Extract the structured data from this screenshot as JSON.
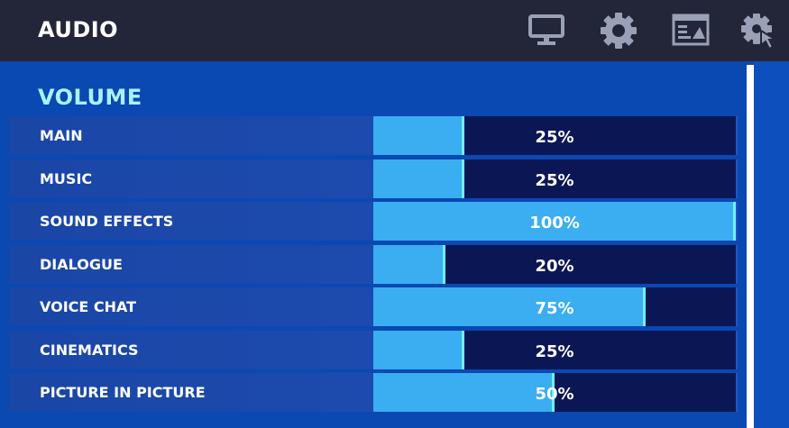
{
  "header": {
    "title": "AUDIO",
    "icons": [
      "monitor-icon",
      "gear-icon",
      "layout-icon",
      "touch-gear-icon"
    ]
  },
  "section": {
    "title": "VOLUME"
  },
  "sliders": [
    {
      "label": "MAIN",
      "value": 25,
      "display": "25%"
    },
    {
      "label": "MUSIC",
      "value": 25,
      "display": "25%"
    },
    {
      "label": "SOUND EFFECTS",
      "value": 100,
      "display": "100%"
    },
    {
      "label": "DIALOGUE",
      "value": 20,
      "display": "20%"
    },
    {
      "label": "VOICE CHAT",
      "value": 75,
      "display": "75%"
    },
    {
      "label": "CINEMATICS",
      "value": 25,
      "display": "25%"
    },
    {
      "label": "PICTURE IN PICTURE",
      "value": 50,
      "display": "50%"
    }
  ],
  "colors": {
    "topbar": "#232638",
    "background": "#0a48b2",
    "fill": "#3aaef0",
    "track": "#0b1755",
    "section_title": "#a9f2ff",
    "icon": "#9aa0b5"
  }
}
